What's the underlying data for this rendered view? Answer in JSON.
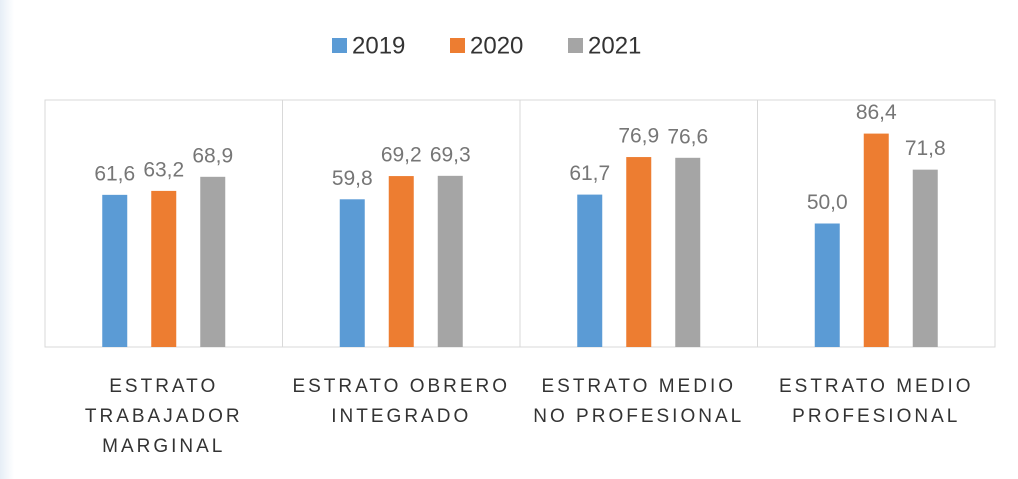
{
  "chart_data": {
    "type": "bar",
    "categories": [
      "ESTRATO TRABAJADOR MARGINAL",
      "ESTRATO OBRERO INTEGRADO",
      "ESTRATO MEDIO NO PROFESIONAL",
      "ESTRATO MEDIO PROFESIONAL"
    ],
    "series": [
      {
        "name": "2019",
        "color": "#5b9bd5",
        "values": [
          61.6,
          59.8,
          61.7,
          50
        ],
        "value_labels": [
          "61,6",
          "59,8",
          "61,7",
          "50,0"
        ]
      },
      {
        "name": "2020",
        "color": "#ed7d31",
        "values": [
          63.2,
          69.2,
          76.9,
          86.4
        ],
        "value_labels": [
          "63,2",
          "69,2",
          "76,9",
          "86,4"
        ]
      },
      {
        "name": "2021",
        "color": "#a5a5a5",
        "values": [
          68.9,
          69.3,
          76.6,
          71.8
        ],
        "value_labels": [
          "68,9",
          "69,3",
          "76,6",
          "71,8"
        ]
      }
    ],
    "ylim": [
      0,
      100
    ],
    "legend": "top"
  }
}
